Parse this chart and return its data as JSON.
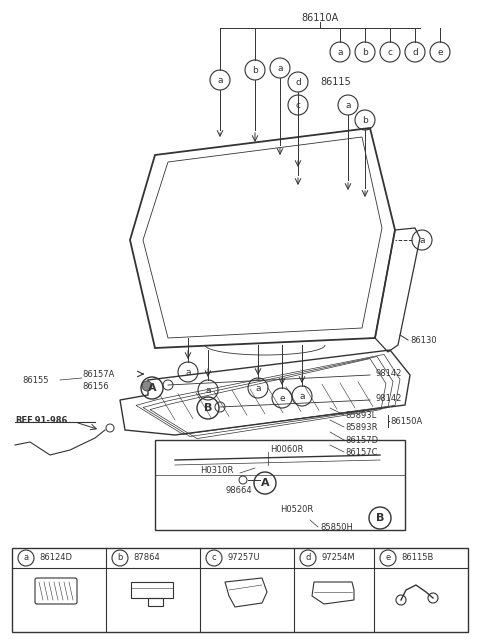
{
  "bg_color": "#ffffff",
  "line_color": "#333333",
  "fig_width": 4.8,
  "fig_height": 6.4,
  "dpi": 100,
  "parts_legend": [
    {
      "letter": "a",
      "part": "86124D"
    },
    {
      "letter": "b",
      "part": "87864"
    },
    {
      "letter": "c",
      "part": "97257U"
    },
    {
      "letter": "d",
      "part": "97254M"
    },
    {
      "letter": "e",
      "part": "86115B"
    }
  ]
}
